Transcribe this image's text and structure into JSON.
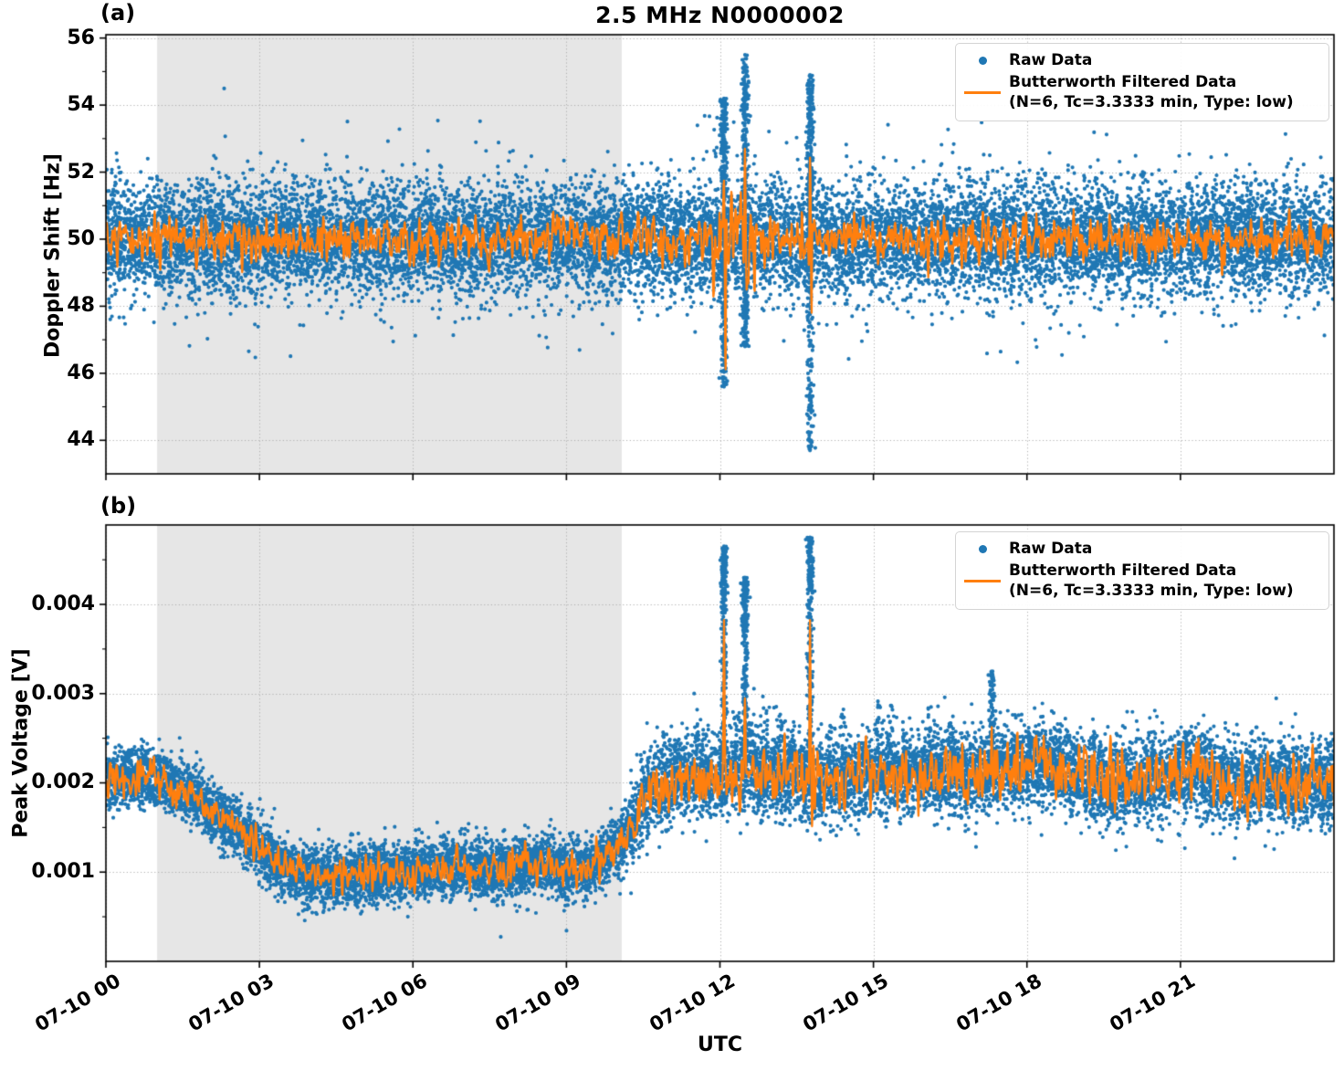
{
  "figure": {
    "title": "2.5 MHz N0000002",
    "xlabel": "UTC",
    "colors": {
      "raw": "#1f77b4",
      "filtered": "#ff7f0e",
      "shaded_region": "#e6e6e6",
      "grid": "#b0b0b0",
      "axis": "#000000",
      "background": "#ffffff",
      "legend_border": "#d4d4d4"
    },
    "legend": {
      "raw_label": "Raw Data",
      "filtered_label": "Butterworth Filtered Data",
      "filtered_sublabel": "(N=6, Tc=3.3333 min, Type: low)"
    }
  },
  "chart_data": [
    {
      "id": "a",
      "panel_label": "(a)",
      "type": "scatter+line",
      "ylabel": "Doppler Shift [Hz]",
      "xlim_hours": [
        0,
        24
      ],
      "ylim": [
        43.0,
        56.1
      ],
      "yticks": [
        44,
        46,
        48,
        50,
        52,
        54,
        56
      ],
      "ytick_labels": [
        "44",
        "46",
        "48",
        "50",
        "52",
        "54",
        "56"
      ],
      "minor_ytick_step": 1,
      "xtick_hours": [
        0,
        3,
        6,
        9,
        12,
        15,
        18,
        21
      ],
      "xtick_labels": [
        "07-10 00",
        "07-10 03",
        "07-10 06",
        "07-10 09",
        "07-10 12",
        "07-10 15",
        "07-10 18",
        "07-10 21"
      ],
      "shaded_region_hours": [
        1.0,
        10.08
      ],
      "grid": "dotted",
      "legend_loc": "upper right",
      "series": {
        "raw": {
          "label": "Raw Data",
          "style": "scatter",
          "center_hz": 50.0,
          "noise_std_hz": 0.82,
          "band_typical_hz": [
            48.0,
            52.0
          ],
          "spikes": [
            {
              "time_h": 12.08,
              "max_hz": 54.2,
              "min_hz": 45.6
            },
            {
              "time_h": 12.49,
              "max_hz": 55.5,
              "min_hz": 46.8
            },
            {
              "time_h": 13.76,
              "max_hz": 54.9,
              "min_hz": 43.7
            }
          ]
        },
        "filtered": {
          "label": "Butterworth Filtered Data",
          "params": "(N=6, Tc=3.3333 min, Type: low)",
          "style": "line",
          "center_hz": 50.0,
          "wiggle_std_hz": 0.26,
          "spikes": [
            {
              "time_h": 12.08,
              "amp_hz": 2.0,
              "width_h": 0.013
            },
            {
              "time_h": 12.11,
              "amp_hz": -4.25,
              "width_h": 0.011
            },
            {
              "time_h": 12.49,
              "amp_hz": 2.4,
              "width_h": 0.014
            },
            {
              "time_h": 12.52,
              "amp_hz": -0.9,
              "width_h": 0.011
            },
            {
              "time_h": 13.76,
              "amp_hz": 2.7,
              "width_h": 0.013
            },
            {
              "time_h": 13.79,
              "amp_hz": -2.5,
              "width_h": 0.011
            }
          ]
        }
      }
    },
    {
      "id": "b",
      "panel_label": "(b)",
      "type": "scatter+line",
      "ylabel": "Peak Voltage [V]",
      "xlim_hours": [
        0,
        24
      ],
      "ylim": [
        0.0,
        0.00489
      ],
      "yticks": [
        0.001,
        0.002,
        0.003,
        0.004
      ],
      "ytick_labels": [
        "0.001",
        "0.002",
        "0.003",
        "0.004"
      ],
      "minor_ytick_step": 0.0005,
      "xtick_hours": [
        0,
        3,
        6,
        9,
        12,
        15,
        18,
        21
      ],
      "xtick_labels": [
        "07-10 00",
        "07-10 03",
        "07-10 06",
        "07-10 09",
        "07-10 12",
        "07-10 15",
        "07-10 18",
        "07-10 21"
      ],
      "shaded_region_hours": [
        1.0,
        10.08
      ],
      "grid": "dotted",
      "legend_loc": "upper right",
      "series": {
        "raw": {
          "label": "Raw Data",
          "style": "scatter",
          "noise_std_v": 0.0002,
          "trend_h_v": [
            [
              0,
              0.00206
            ],
            [
              0.5,
              0.00207
            ],
            [
              1.0,
              0.00204
            ],
            [
              1.3,
              0.00198
            ],
            [
              1.7,
              0.00186
            ],
            [
              2.0,
              0.00172
            ],
            [
              2.3,
              0.00158
            ],
            [
              2.6,
              0.00148
            ],
            [
              3.0,
              0.00128
            ],
            [
              3.3,
              0.00112
            ],
            [
              3.6,
              0.00102
            ],
            [
              4.0,
              0.00097
            ],
            [
              4.5,
              0.00093
            ],
            [
              5.0,
              0.00096
            ],
            [
              5.5,
              0.00099
            ],
            [
              6.0,
              0.001
            ],
            [
              6.5,
              0.00104
            ],
            [
              7.0,
              0.00106
            ],
            [
              7.5,
              0.00102
            ],
            [
              8.0,
              0.00106
            ],
            [
              8.5,
              0.00108
            ],
            [
              9.0,
              0.00104
            ],
            [
              9.3,
              0.001
            ],
            [
              9.6,
              0.00108
            ],
            [
              9.9,
              0.00122
            ],
            [
              10.1,
              0.00135
            ],
            [
              10.3,
              0.00155
            ],
            [
              10.5,
              0.0018
            ],
            [
              10.7,
              0.00196
            ],
            [
              11.0,
              0.00205
            ],
            [
              11.5,
              0.0021
            ],
            [
              12.0,
              0.00208
            ],
            [
              12.5,
              0.00215
            ],
            [
              13.0,
              0.0021
            ],
            [
              13.5,
              0.00208
            ],
            [
              14.0,
              0.002
            ],
            [
              14.5,
              0.00205
            ],
            [
              15.0,
              0.00212
            ],
            [
              15.5,
              0.00208
            ],
            [
              16.0,
              0.00212
            ],
            [
              16.5,
              0.0021
            ],
            [
              17.0,
              0.00208
            ],
            [
              17.5,
              0.00214
            ],
            [
              18.0,
              0.00218
            ],
            [
              18.4,
              0.00224
            ],
            [
              18.8,
              0.00212
            ],
            [
              19.2,
              0.00204
            ],
            [
              19.6,
              0.00198
            ],
            [
              20.0,
              0.002
            ],
            [
              20.5,
              0.00208
            ],
            [
              21.0,
              0.0021
            ],
            [
              21.3,
              0.00216
            ],
            [
              21.7,
              0.00204
            ],
            [
              22.0,
              0.00198
            ],
            [
              22.5,
              0.002
            ],
            [
              23.0,
              0.00202
            ],
            [
              23.5,
              0.00197
            ],
            [
              24,
              0.002
            ]
          ],
          "spikes": [
            {
              "time_h": 12.08,
              "max_v": 0.00465
            },
            {
              "time_h": 12.49,
              "max_v": 0.0043
            },
            {
              "time_h": 13.76,
              "max_v": 0.00475
            },
            {
              "time_h": 17.31,
              "max_v": 0.00325
            }
          ],
          "bumps_h_v": [
            [
              11.55,
              0.00265
            ],
            [
              12.3,
              0.0028
            ],
            [
              12.62,
              0.0027
            ],
            [
              12.9,
              0.00285
            ],
            [
              13.2,
              0.0028
            ],
            [
              13.45,
              0.0027
            ],
            [
              14.15,
              0.0027
            ],
            [
              14.4,
              0.0029
            ],
            [
              15.1,
              0.00295
            ],
            [
              15.35,
              0.0029
            ],
            [
              15.6,
              0.0027
            ],
            [
              16.1,
              0.00285
            ],
            [
              16.55,
              0.0027
            ],
            [
              18.05,
              0.0026
            ],
            [
              19.3,
              0.0026
            ],
            [
              21.1,
              0.0026
            ],
            [
              22.4,
              0.0026
            ]
          ]
        },
        "filtered": {
          "label": "Butterworth Filtered Data",
          "params": "(N=6, Tc=3.3333 min, Type: low)",
          "style": "line",
          "wiggle_std_v": 8e-05,
          "spikes": [
            {
              "time_h": 12.08,
              "amp_v": 0.00172,
              "width_h": 0.013
            },
            {
              "time_h": 12.13,
              "amp_v": -0.00045,
              "width_h": 0.014
            },
            {
              "time_h": 12.49,
              "amp_v": 0.00092,
              "width_h": 0.014
            },
            {
              "time_h": 13.76,
              "amp_v": 0.00172,
              "width_h": 0.013
            },
            {
              "time_h": 13.8,
              "amp_v": -0.0004,
              "width_h": 0.012
            },
            {
              "time_h": 17.31,
              "amp_v": 0.00075,
              "width_h": 0.011
            }
          ]
        }
      }
    }
  ]
}
